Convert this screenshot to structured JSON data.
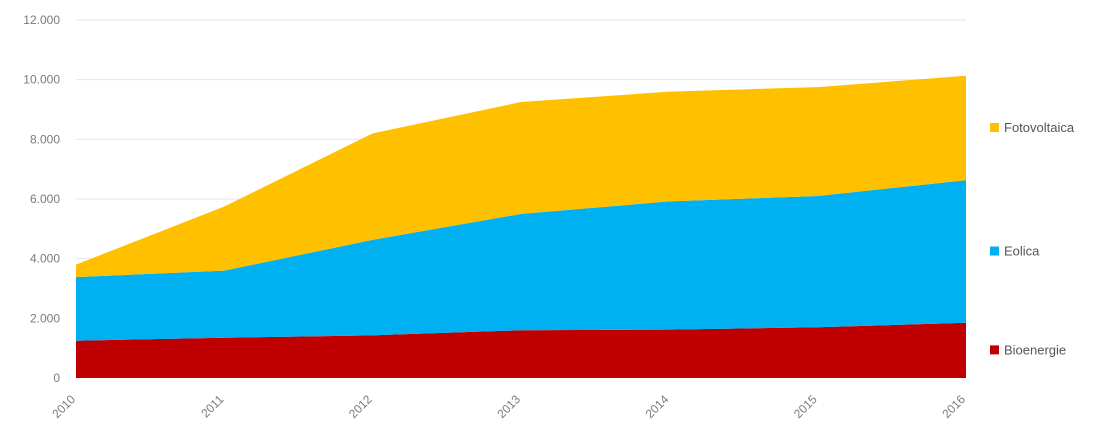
{
  "chart_data": {
    "type": "area",
    "stacked": true,
    "categories": [
      "2010",
      "2011",
      "2012",
      "2013",
      "2014",
      "2015",
      "2016"
    ],
    "series": [
      {
        "name": "Bioenergie",
        "values": [
          1250,
          1350,
          1430,
          1600,
          1620,
          1700,
          1850
        ],
        "color": "#c00000"
      },
      {
        "name": "Eolica",
        "values": [
          2130,
          2250,
          3200,
          3900,
          4300,
          4400,
          4780
        ],
        "color": "#00b0f0"
      },
      {
        "name": "Fotovoltaica",
        "values": [
          420,
          2150,
          3570,
          3750,
          3680,
          3650,
          3500
        ],
        "color": "#ffc000"
      }
    ],
    "yticks": [
      "0",
      "2.000",
      "4.000",
      "6.000",
      "8.000",
      "10.000",
      "12.000"
    ],
    "ylim": [
      0,
      12000
    ],
    "grid": true,
    "legend_position": "right",
    "title": "",
    "xlabel": "",
    "ylabel": ""
  }
}
